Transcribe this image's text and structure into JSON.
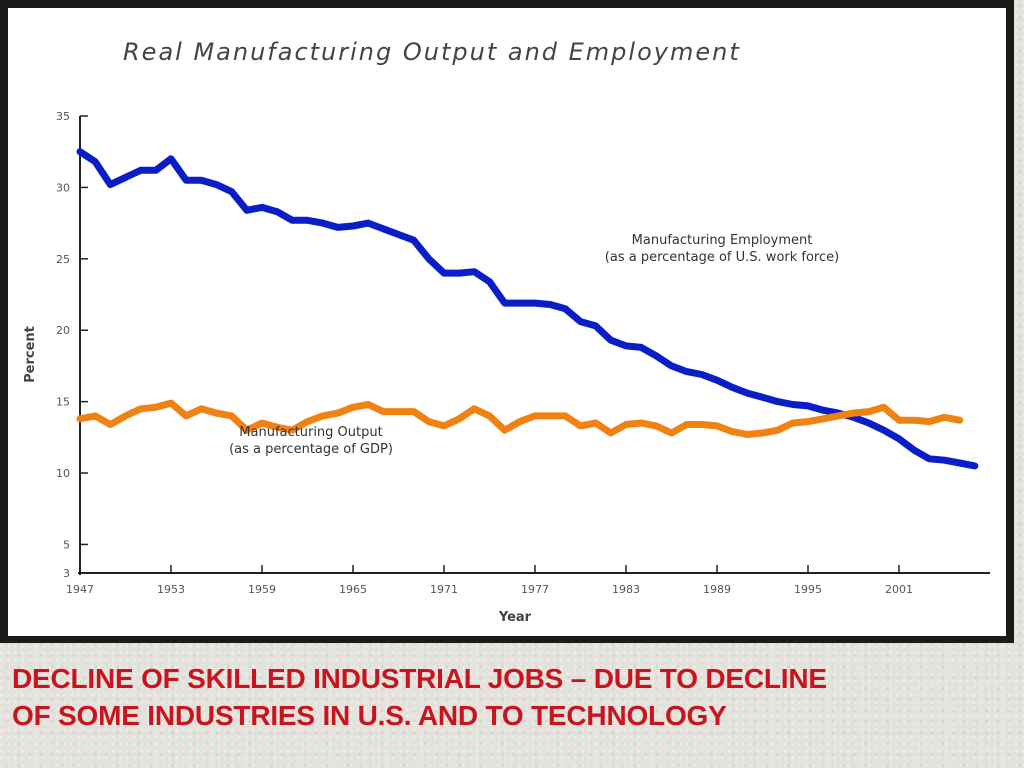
{
  "chart_data": {
    "type": "line",
    "title": "Real Manufacturing Output and Employment",
    "xlabel": "Year",
    "ylabel": "Percent",
    "xlim": [
      1947,
      2007
    ],
    "ylim": [
      3,
      35
    ],
    "x_ticks": [
      {
        "value": 1947,
        "label": "1947"
      },
      {
        "value": 1953,
        "label": "1953"
      },
      {
        "value": 1959,
        "label": "1959"
      },
      {
        "value": 1965,
        "label": "1965"
      },
      {
        "value": 1971,
        "label": "1971"
      },
      {
        "value": 1977,
        "label": "1977"
      },
      {
        "value": 1983,
        "label": "1983"
      },
      {
        "value": 1989,
        "label": "1989"
      },
      {
        "value": 1995,
        "label": "1995"
      },
      {
        "value": 2001,
        "label": "2001"
      }
    ],
    "y_ticks": [
      {
        "value": 3,
        "label": "3"
      },
      {
        "value": 5,
        "label": "5"
      },
      {
        "value": 10,
        "label": "10"
      },
      {
        "value": 15,
        "label": "15"
      },
      {
        "value": 20,
        "label": "20"
      },
      {
        "value": 25,
        "label": "25"
      },
      {
        "value": 30,
        "label": "30"
      },
      {
        "value": 35,
        "label": "35"
      }
    ],
    "grid": false,
    "legend": "none",
    "series": [
      {
        "label_lines": [
          "Manufacturing Employment",
          "(as a percentage of U.S. work force)"
        ],
        "color": "#0a1ec8",
        "x": [
          1947,
          1948,
          1949,
          1950,
          1951,
          1952,
          1953,
          1954,
          1955,
          1956,
          1957,
          1958,
          1959,
          1960,
          1961,
          1962,
          1963,
          1964,
          1965,
          1966,
          1967,
          1968,
          1969,
          1970,
          1971,
          1972,
          1973,
          1974,
          1975,
          1976,
          1977,
          1978,
          1979,
          1980,
          1981,
          1982,
          1983,
          1984,
          1985,
          1986,
          1987,
          1988,
          1989,
          1990,
          1991,
          1992,
          1993,
          1994,
          1995,
          1996,
          1997,
          1998,
          1999,
          2000,
          2001,
          2002,
          2003,
          2004,
          2005,
          2006
        ],
        "y": [
          32.5,
          31.8,
          30.2,
          30.7,
          31.2,
          31.2,
          32.0,
          30.5,
          30.5,
          30.2,
          29.7,
          28.4,
          28.6,
          28.3,
          27.7,
          27.7,
          27.5,
          27.2,
          27.3,
          27.5,
          27.1,
          26.7,
          26.3,
          25.0,
          24.0,
          24.0,
          24.1,
          23.4,
          21.9,
          21.9,
          21.9,
          21.8,
          21.5,
          20.6,
          20.3,
          19.3,
          18.9,
          18.8,
          18.2,
          17.5,
          17.1,
          16.9,
          16.5,
          16.0,
          15.6,
          15.3,
          15.0,
          14.8,
          14.7,
          14.4,
          14.2,
          13.9,
          13.5,
          13.0,
          12.4,
          11.6,
          11.0,
          10.9,
          10.7,
          10.5
        ]
      },
      {
        "label_lines": [
          "Manufacturing Output",
          "(as a percentage of GDP)"
        ],
        "color": "#f08214",
        "x": [
          1947,
          1948,
          1949,
          1950,
          1951,
          1952,
          1953,
          1954,
          1955,
          1956,
          1957,
          1958,
          1959,
          1960,
          1961,
          1962,
          1963,
          1964,
          1965,
          1966,
          1967,
          1968,
          1969,
          1970,
          1971,
          1972,
          1973,
          1974,
          1975,
          1976,
          1977,
          1978,
          1979,
          1980,
          1981,
          1982,
          1983,
          1984,
          1985,
          1986,
          1987,
          1988,
          1989,
          1990,
          1991,
          1992,
          1993,
          1994,
          1995,
          1996,
          1997,
          1998,
          1999,
          2000,
          2001,
          2002,
          2003,
          2004,
          2005,
          2006
        ],
        "y": [
          13.8,
          14.0,
          13.4,
          14.0,
          14.5,
          14.6,
          14.9,
          14.0,
          14.5,
          14.2,
          14.0,
          13.0,
          13.5,
          13.2,
          13.0,
          13.6,
          14.0,
          14.2,
          14.6,
          14.8,
          14.3,
          14.3,
          14.3,
          13.6,
          13.3,
          13.8,
          14.5,
          14.0,
          13.0,
          13.6,
          14.0,
          14.0,
          14.0,
          13.3,
          13.5,
          12.8,
          13.4,
          13.5,
          13.3,
          12.8,
          13.4,
          13.4,
          13.3,
          12.9,
          12.7,
          12.8,
          13.0,
          13.5,
          13.6,
          13.8,
          14.0,
          14.2,
          14.3,
          14.6,
          13.7,
          13.7,
          13.6,
          13.9,
          13.7,
          null
        ]
      }
    ]
  },
  "caption": {
    "line1": "DECLINE OF SKILLED INDUSTRIAL JOBS – DUE TO DECLINE",
    "line2": "OF SOME INDUSTRIES IN U.S. AND TO TECHNOLOGY"
  }
}
